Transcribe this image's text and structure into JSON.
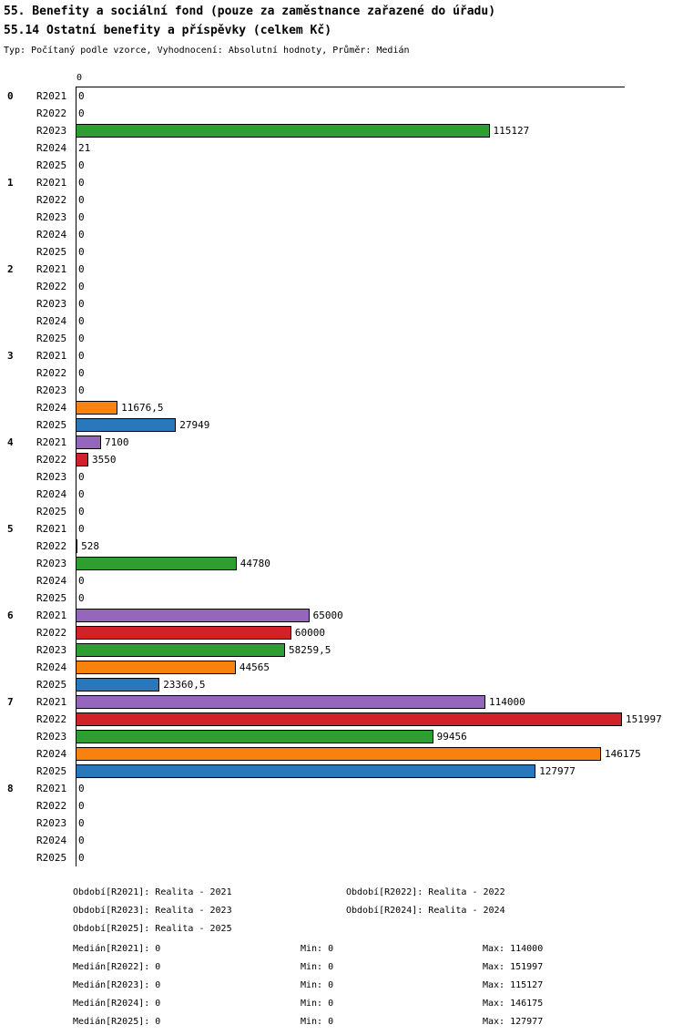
{
  "header": {
    "title": "55. Benefity a sociální fond (pouze za zaměstnance zařazené do úřadu)",
    "subtitle": "55.14 Ostatní benefity a příspěvky (celkem Kč)",
    "meta": "Typ: Počítaný podle vzorce, Vyhodnocení: Absolutní hodnoty, Průměr: Medián"
  },
  "chart_data": {
    "type": "bar",
    "orientation": "horizontal",
    "title": "55.14 Ostatní benefity a příspěvky (celkem Kč)",
    "xlim": [
      0,
      152500
    ],
    "axis_tick_label": "0",
    "grid": false,
    "legend_position": "bottom",
    "series": [
      {
        "name": "R2021",
        "color": "#9467bd"
      },
      {
        "name": "R2022",
        "color": "#d02228"
      },
      {
        "name": "R2023",
        "color": "#2f9e32"
      },
      {
        "name": "R2024",
        "color": "#f8820d"
      },
      {
        "name": "R2025",
        "color": "#2878bb"
      }
    ],
    "groups": [
      {
        "label": "0",
        "values": [
          0,
          0,
          115127,
          21,
          0
        ],
        "value_labels": [
          "0",
          "0",
          "115127",
          "21",
          "0"
        ]
      },
      {
        "label": "1",
        "values": [
          0,
          0,
          0,
          0,
          0
        ],
        "value_labels": [
          "0",
          "0",
          "0",
          "0",
          "0"
        ]
      },
      {
        "label": "2",
        "values": [
          0,
          0,
          0,
          0,
          0
        ],
        "value_labels": [
          "0",
          "0",
          "0",
          "0",
          "0"
        ]
      },
      {
        "label": "3",
        "values": [
          0,
          0,
          0,
          11676.5,
          27949
        ],
        "value_labels": [
          "0",
          "0",
          "0",
          "11676,5",
          "27949"
        ]
      },
      {
        "label": "4",
        "values": [
          7100,
          3550,
          0,
          0,
          0
        ],
        "value_labels": [
          "7100",
          "3550",
          "0",
          "0",
          "0"
        ]
      },
      {
        "label": "5",
        "values": [
          0,
          528,
          44780,
          0,
          0
        ],
        "value_labels": [
          "0",
          "528",
          "44780",
          "0",
          "0"
        ]
      },
      {
        "label": "6",
        "values": [
          65000,
          60000,
          58259.5,
          44565,
          23360.5
        ],
        "value_labels": [
          "65000",
          "60000",
          "58259,5",
          "44565",
          "23360,5"
        ]
      },
      {
        "label": "7",
        "values": [
          114000,
          151997,
          99456,
          146175,
          127977
        ],
        "value_labels": [
          "114000",
          "151997",
          "99456",
          "146175",
          "127977"
        ]
      },
      {
        "label": "8",
        "values": [
          0,
          0,
          0,
          0,
          0
        ],
        "value_labels": [
          "0",
          "0",
          "0",
          "0",
          "0"
        ]
      }
    ]
  },
  "legend": {
    "entries": [
      "Období[R2021]: Realita - 2021",
      "Období[R2022]: Realita - 2022",
      "Období[R2023]: Realita - 2023",
      "Období[R2024]: Realita - 2024",
      "Období[R2025]: Realita - 2025"
    ]
  },
  "stats": {
    "rows": [
      {
        "median": "Medián[R2021]: 0",
        "min": "Min: 0",
        "max": "Max: 114000"
      },
      {
        "median": "Medián[R2022]: 0",
        "min": "Min: 0",
        "max": "Max: 151997"
      },
      {
        "median": "Medián[R2023]: 0",
        "min": "Min: 0",
        "max": "Max: 115127"
      },
      {
        "median": "Medián[R2024]: 0",
        "min": "Min: 0",
        "max": "Max: 146175"
      },
      {
        "median": "Medián[R2025]: 0",
        "min": "Min: 0",
        "max": "Max: 127977"
      }
    ]
  }
}
